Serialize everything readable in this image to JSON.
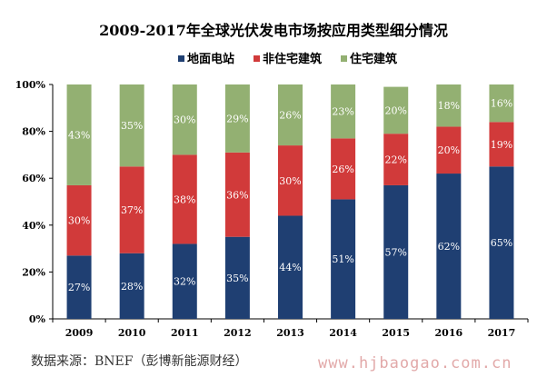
{
  "chart_data": {
    "type": "bar",
    "stacked": true,
    "title": "2009-2017年全球光伏发电市场按应用类型细分情况",
    "categories": [
      "2009",
      "2010",
      "2011",
      "2012",
      "2013",
      "2014",
      "2015",
      "2016",
      "2017"
    ],
    "series": [
      {
        "name": "地面电站",
        "color": "#1f3f72",
        "values": [
          27,
          28,
          32,
          35,
          44,
          51,
          57,
          62,
          65
        ]
      },
      {
        "name": "非住宅建筑",
        "color": "#d13a3a",
        "values": [
          30,
          37,
          38,
          36,
          30,
          26,
          22,
          20,
          19
        ]
      },
      {
        "name": "住宅建筑",
        "color": "#93b072",
        "values": [
          43,
          35,
          30,
          29,
          26,
          23,
          20,
          18,
          16
        ]
      }
    ],
    "yticks": [
      "0%",
      "20%",
      "40%",
      "60%",
      "80%",
      "100%"
    ],
    "ylim": [
      0,
      100
    ],
    "legend_position": "top"
  },
  "footer": {
    "source": "数据来源：BNEF（彭博新能源财经）",
    "watermark": "www.hjbaogao.com.cn"
  }
}
